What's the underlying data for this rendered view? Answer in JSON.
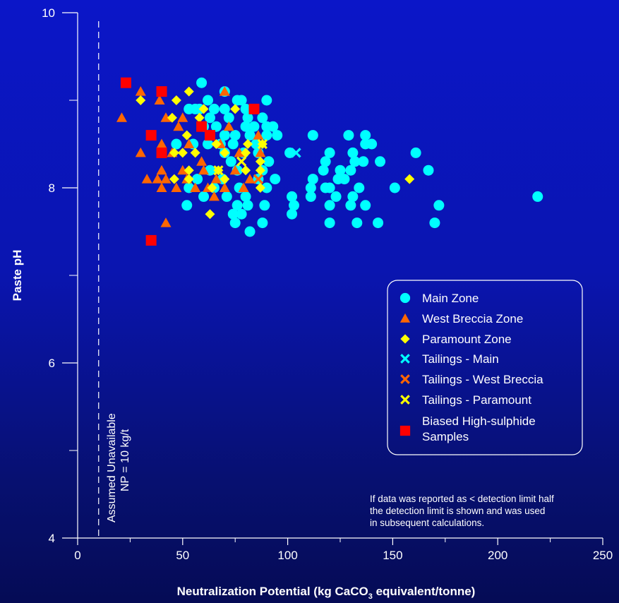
{
  "chart_data": {
    "type": "scatter",
    "xlabel_pre": "Neutralization Potential (kg CaCO",
    "xlabel_sub": "3",
    "xlabel_post": " equivalent/tonne)",
    "ylabel": "Paste pH",
    "xlim": [
      0,
      250
    ],
    "ylim": [
      4,
      10
    ],
    "x_ticks": [
      0,
      50,
      100,
      150,
      200,
      250
    ],
    "y_ticks": [
      4,
      6,
      8,
      10
    ],
    "grid": false,
    "legend_placement": "right",
    "reference_line": {
      "x": 10,
      "label_line1": "Assumed Unavailable",
      "label_line2": "NP = 10 kg/t"
    },
    "note_lines": [
      "If data was reported as < detection limit half",
      "the detection limit is shown and was used",
      "in subsequent calculations."
    ],
    "series": [
      {
        "name": "Main Zone",
        "marker": "circle",
        "color": "#00ffff",
        "points": [
          [
            59,
            9.2
          ],
          [
            70,
            9.1
          ],
          [
            76,
            9.0
          ],
          [
            78,
            9.0
          ],
          [
            90,
            9.0
          ],
          [
            62,
            9.0
          ],
          [
            53,
            8.9
          ],
          [
            56,
            8.9
          ],
          [
            58,
            8.9
          ],
          [
            65,
            8.9
          ],
          [
            70,
            8.9
          ],
          [
            80,
            8.9
          ],
          [
            63,
            8.8
          ],
          [
            72,
            8.8
          ],
          [
            81,
            8.8
          ],
          [
            88,
            8.8
          ],
          [
            60,
            8.7
          ],
          [
            66,
            8.7
          ],
          [
            80,
            8.7
          ],
          [
            84,
            8.7
          ],
          [
            90,
            8.7
          ],
          [
            93,
            8.7
          ],
          [
            70,
            8.6
          ],
          [
            75,
            8.6
          ],
          [
            82,
            8.6
          ],
          [
            90,
            8.6
          ],
          [
            95,
            8.6
          ],
          [
            112,
            8.6
          ],
          [
            129,
            8.6
          ],
          [
            137,
            8.6
          ],
          [
            47,
            8.5
          ],
          [
            55,
            8.5
          ],
          [
            62,
            8.5
          ],
          [
            68,
            8.5
          ],
          [
            74,
            8.5
          ],
          [
            85,
            8.5
          ],
          [
            137,
            8.5
          ],
          [
            140,
            8.5
          ],
          [
            70,
            8.4
          ],
          [
            79,
            8.4
          ],
          [
            86,
            8.4
          ],
          [
            101,
            8.4
          ],
          [
            120,
            8.4
          ],
          [
            131,
            8.4
          ],
          [
            161,
            8.4
          ],
          [
            73,
            8.3
          ],
          [
            91,
            8.3
          ],
          [
            118,
            8.3
          ],
          [
            132,
            8.3
          ],
          [
            136,
            8.3
          ],
          [
            144,
            8.3
          ],
          [
            63,
            8.2
          ],
          [
            76,
            8.2
          ],
          [
            88,
            8.2
          ],
          [
            117,
            8.2
          ],
          [
            125,
            8.2
          ],
          [
            130,
            8.2
          ],
          [
            167,
            8.2
          ],
          [
            57,
            8.1
          ],
          [
            69,
            8.1
          ],
          [
            86,
            8.1
          ],
          [
            94,
            8.1
          ],
          [
            112,
            8.1
          ],
          [
            124,
            8.1
          ],
          [
            127,
            8.1
          ],
          [
            53,
            8.0
          ],
          [
            65,
            8.0
          ],
          [
            77,
            8.0
          ],
          [
            90,
            8.0
          ],
          [
            111,
            8.0
          ],
          [
            118,
            8.0
          ],
          [
            120,
            8.0
          ],
          [
            134,
            8.0
          ],
          [
            151,
            8.0
          ],
          [
            60,
            7.9
          ],
          [
            71,
            7.9
          ],
          [
            80,
            7.9
          ],
          [
            102,
            7.9
          ],
          [
            111,
            7.9
          ],
          [
            123,
            7.9
          ],
          [
            131,
            7.9
          ],
          [
            219,
            7.9
          ],
          [
            52,
            7.8
          ],
          [
            76,
            7.8
          ],
          [
            81,
            7.8
          ],
          [
            89,
            7.8
          ],
          [
            103,
            7.8
          ],
          [
            120,
            7.8
          ],
          [
            130,
            7.8
          ],
          [
            137,
            7.8
          ],
          [
            172,
            7.8
          ],
          [
            74,
            7.7
          ],
          [
            78,
            7.7
          ],
          [
            102,
            7.7
          ],
          [
            75,
            7.6
          ],
          [
            88,
            7.6
          ],
          [
            120,
            7.6
          ],
          [
            133,
            7.6
          ],
          [
            143,
            7.6
          ],
          [
            170,
            7.6
          ],
          [
            82,
            7.5
          ]
        ]
      },
      {
        "name": "West Breccia Zone",
        "marker": "triangle",
        "color": "#ff6600",
        "points": [
          [
            30,
            9.1
          ],
          [
            70,
            9.1
          ],
          [
            39,
            9.0
          ],
          [
            50,
            8.8
          ],
          [
            42,
            8.8
          ],
          [
            21,
            8.8
          ],
          [
            48,
            8.7
          ],
          [
            72,
            8.7
          ],
          [
            40,
            8.5
          ],
          [
            53,
            8.5
          ],
          [
            68,
            8.5
          ],
          [
            86,
            8.6
          ],
          [
            30,
            8.4
          ],
          [
            45,
            8.4
          ],
          [
            59,
            8.3
          ],
          [
            77,
            8.4
          ],
          [
            87,
            8.4
          ],
          [
            40,
            8.2
          ],
          [
            50,
            8.2
          ],
          [
            60,
            8.2
          ],
          [
            75,
            8.2
          ],
          [
            33,
            8.1
          ],
          [
            38,
            8.1
          ],
          [
            42,
            8.1
          ],
          [
            52,
            8.1
          ],
          [
            66,
            8.1
          ],
          [
            82,
            8.1
          ],
          [
            40,
            8.0
          ],
          [
            47,
            8.0
          ],
          [
            56,
            8.0
          ],
          [
            62,
            8.0
          ],
          [
            70,
            8.0
          ],
          [
            79,
            8.0
          ],
          [
            65,
            7.9
          ],
          [
            42,
            7.6
          ]
        ]
      },
      {
        "name": "Paramount Zone",
        "marker": "diamond",
        "color": "#ffff00",
        "points": [
          [
            30,
            9.0
          ],
          [
            53,
            9.1
          ],
          [
            47,
            9.0
          ],
          [
            60,
            8.9
          ],
          [
            75,
            8.9
          ],
          [
            45,
            8.8
          ],
          [
            58,
            8.8
          ],
          [
            52,
            8.6
          ],
          [
            63,
            8.6
          ],
          [
            66,
            8.5
          ],
          [
            81,
            8.5
          ],
          [
            88,
            8.5
          ],
          [
            46,
            8.4
          ],
          [
            50,
            8.4
          ],
          [
            56,
            8.4
          ],
          [
            70,
            8.4
          ],
          [
            80,
            8.4
          ],
          [
            87,
            8.3
          ],
          [
            53,
            8.2
          ],
          [
            67,
            8.2
          ],
          [
            80,
            8.2
          ],
          [
            87,
            8.2
          ],
          [
            46,
            8.1
          ],
          [
            53,
            8.1
          ],
          [
            70,
            8.1
          ],
          [
            87,
            8.0
          ],
          [
            64,
            8.0
          ],
          [
            158,
            8.1
          ],
          [
            63,
            7.7
          ]
        ]
      },
      {
        "name": "Tailings - Main",
        "marker": "x",
        "color": "#00ffff",
        "points": [
          [
            104,
            8.4
          ]
        ]
      },
      {
        "name": "Tailings - West Breccia",
        "marker": "x",
        "color": "#ff6600",
        "points": [
          [
            86,
            8.1
          ]
        ]
      },
      {
        "name": "Tailings - Paramount",
        "marker": "x",
        "color": "#ffff00",
        "points": [
          [
            67,
            8.2
          ],
          [
            78,
            8.3
          ],
          [
            88,
            8.5
          ]
        ]
      },
      {
        "name": "Biased High-sulphide Samples",
        "marker": "square",
        "color": "#ff0000",
        "points": [
          [
            23,
            9.2
          ],
          [
            40,
            9.1
          ],
          [
            84,
            8.9
          ],
          [
            59,
            8.7
          ],
          [
            35,
            8.6
          ],
          [
            63,
            8.6
          ],
          [
            40,
            8.4
          ],
          [
            35,
            7.4
          ]
        ]
      }
    ],
    "legend_entries": [
      {
        "line1": "Main Zone"
      },
      {
        "line1": "West Breccia Zone"
      },
      {
        "line1": "Paramount Zone"
      },
      {
        "line1": "Tailings - Main"
      },
      {
        "line1": "Tailings - West Breccia"
      },
      {
        "line1": "Tailings - Paramount"
      },
      {
        "line1": "Biased High-sulphide",
        "line2": "Samples"
      }
    ]
  }
}
